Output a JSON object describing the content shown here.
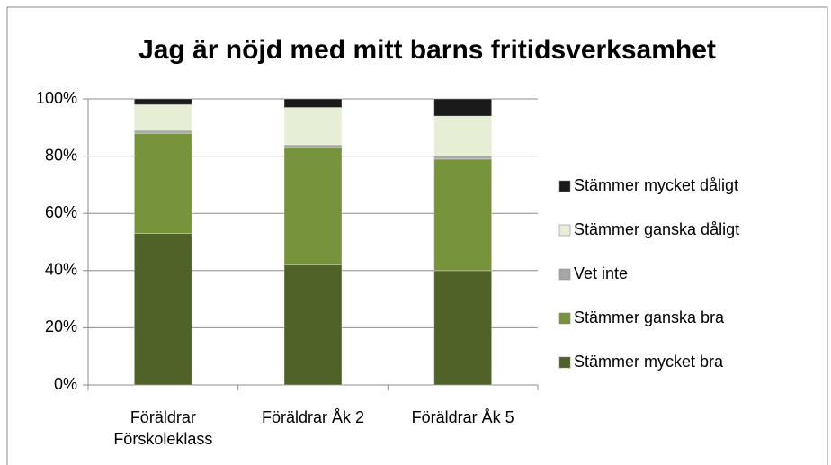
{
  "chart_data": {
    "type": "stacked_bar",
    "title": "Jag är nöjd med mitt barns fritidsverksamhet",
    "categories": [
      "Föräldrar Förskoleklass",
      "Föräldrar Åk 2",
      "Föräldrar Åk 5"
    ],
    "series": [
      {
        "name": "Stämmer mycket bra",
        "color": "#4f6228",
        "values": [
          53,
          42,
          40
        ]
      },
      {
        "name": "Stämmer ganska bra",
        "color": "#77933c",
        "values": [
          35,
          41,
          39
        ]
      },
      {
        "name": "Vet inte",
        "color": "#a6a6a6",
        "values": [
          1,
          1,
          1
        ]
      },
      {
        "name": "Stämmer ganska dåligt",
        "color": "#e6eed5",
        "values": [
          9,
          13,
          14
        ]
      },
      {
        "name": "Stämmer mycket dåligt",
        "color": "#1a1a1a",
        "values": [
          2,
          3,
          6
        ]
      }
    ],
    "ylim": [
      0,
      100
    ],
    "yticks": [
      {
        "value": 0,
        "label": "0%"
      },
      {
        "value": 20,
        "label": "20%"
      },
      {
        "value": 40,
        "label": "40%"
      },
      {
        "value": 60,
        "label": "60%"
      },
      {
        "value": 80,
        "label": "80%"
      },
      {
        "value": 100,
        "label": "100%"
      }
    ],
    "grid": true,
    "legend": "right"
  }
}
